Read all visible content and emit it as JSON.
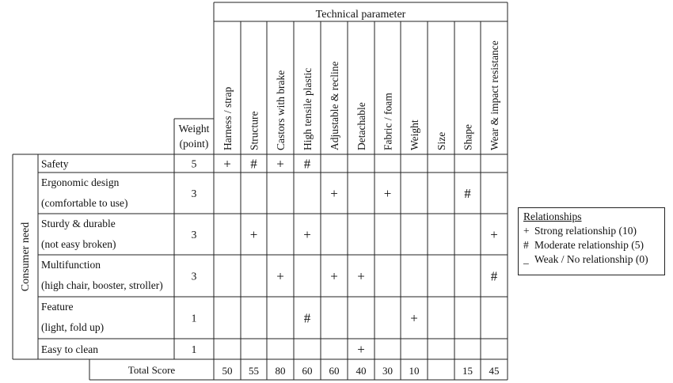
{
  "header_title": "Technical parameter",
  "weight_header": "Weight\n(point)",
  "side_label": "Consumer need",
  "parameters": [
    "Harness / strap",
    "Structure",
    "Castors with brake",
    "High tensile plastic",
    "Adjustable & recline",
    "Detachable",
    "Fabric / foam",
    "Weight",
    "Size",
    "Shape",
    "Wear & impact resistance"
  ],
  "needs": [
    {
      "lines": [
        "Safety"
      ],
      "weight": "5",
      "cells": [
        "+",
        "#",
        "+",
        "#",
        "",
        "",
        "",
        "",
        "",
        "",
        ""
      ]
    },
    {
      "lines": [
        "Ergonomic design",
        "(comfortable to use)"
      ],
      "weight": "3",
      "cells": [
        "",
        "",
        "",
        "",
        "+",
        "",
        "+",
        "",
        "",
        "#",
        ""
      ]
    },
    {
      "lines": [
        "Sturdy & durable",
        "(not easy broken)"
      ],
      "weight": "3",
      "cells": [
        "",
        "+",
        "",
        "+",
        "",
        "",
        "",
        "",
        "",
        "",
        "+"
      ]
    },
    {
      "lines": [
        "Multifunction",
        "(high chair, booster, stroller)"
      ],
      "weight": "3",
      "cells": [
        "",
        "",
        "+",
        "",
        "+",
        "+",
        "",
        "",
        "",
        "",
        "#"
      ]
    },
    {
      "lines": [
        "Feature",
        "(light, fold up)"
      ],
      "weight": "1",
      "cells": [
        "",
        "",
        "",
        "#",
        "",
        "",
        "",
        "+",
        "",
        "",
        ""
      ]
    },
    {
      "lines": [
        "Easy to clean"
      ],
      "weight": "1",
      "cells": [
        "",
        "",
        "",
        "",
        "",
        "+",
        "",
        "",
        "",
        "",
        ""
      ]
    }
  ],
  "total": {
    "label": "Total Score",
    "values": [
      "50",
      "55",
      "80",
      "60",
      "60",
      "40",
      "30",
      "10",
      "",
      "15",
      "45"
    ]
  },
  "legend": {
    "title": "Relationships",
    "items": [
      {
        "symbol": "+",
        "text": "Strong relationship (10)"
      },
      {
        "symbol": "#",
        "text": "Moderate relationship (5)"
      },
      {
        "symbol": "_",
        "text": "Weak / No relationship (0)"
      }
    ]
  }
}
